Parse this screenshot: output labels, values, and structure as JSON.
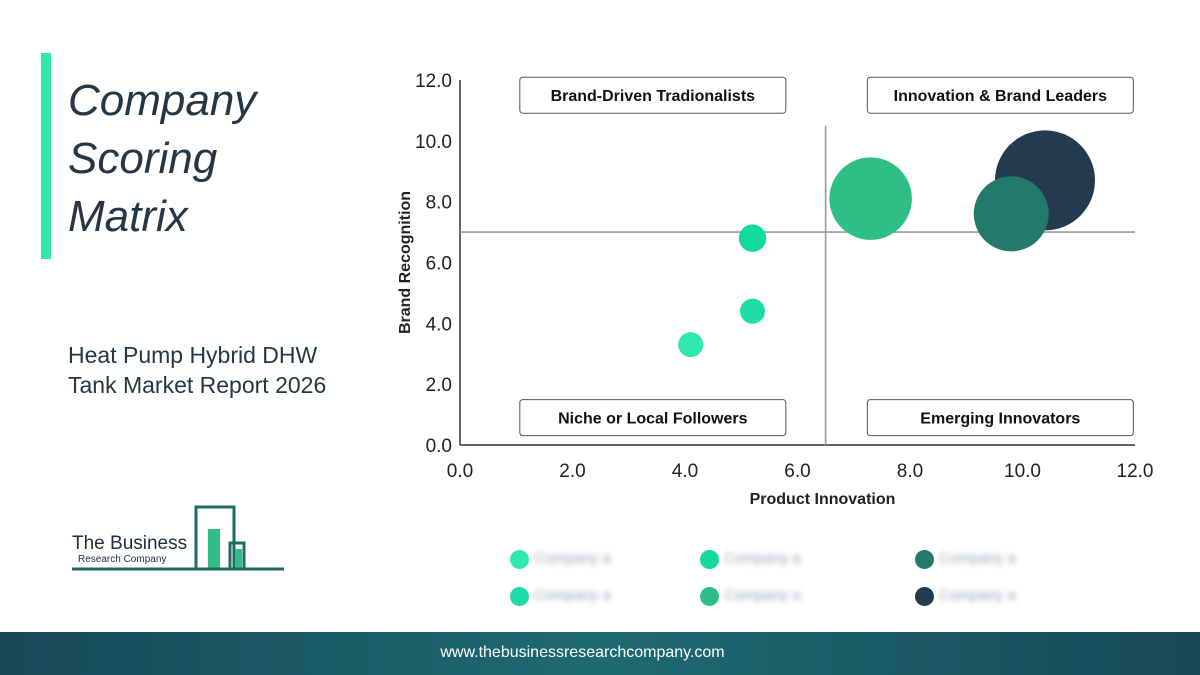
{
  "title": {
    "lines": [
      "Company",
      "Scoring",
      "Matrix"
    ]
  },
  "subtitle": {
    "lines": [
      "Heat Pump Hybrid DHW",
      "Tank Market Report 2026"
    ]
  },
  "logo": {
    "line1": "The Business",
    "line2": "Research Company"
  },
  "footer": {
    "url": "www.thebusinessresearchcompany.com"
  },
  "colors": {
    "accent": "#2ee8b0",
    "dark": "#243a4e",
    "footer": "#1e6a73"
  },
  "chart_data": {
    "type": "scatter",
    "xlabel": "Product Innovation",
    "ylabel": "Brand Recognition",
    "xlim": [
      0,
      12
    ],
    "ylim": [
      0,
      12
    ],
    "x_ticks": [
      "0.0",
      "2.0",
      "4.0",
      "6.0",
      "8.0",
      "10.0",
      "12.0"
    ],
    "y_ticks": [
      "0.0",
      "2.0",
      "4.0",
      "6.0",
      "8.0",
      "10.0",
      "12.0"
    ],
    "divider_x": 6.5,
    "divider_y": 7.0,
    "quadrants": [
      {
        "label": "Brand-Driven Tradionalists",
        "position": "top-left"
      },
      {
        "label": "Innovation & Brand Leaders",
        "position": "top-right"
      },
      {
        "label": "Niche or Local Followers",
        "position": "bottom-left"
      },
      {
        "label": "Emerging Innovators",
        "position": "bottom-right"
      }
    ],
    "points": [
      {
        "x": 4.1,
        "y": 3.3,
        "size": 1.0,
        "color": "#2ee8b0"
      },
      {
        "x": 5.2,
        "y": 4.4,
        "size": 1.0,
        "color": "#1fdba6"
      },
      {
        "x": 5.2,
        "y": 6.8,
        "size": 1.1,
        "color": "#12d99e"
      },
      {
        "x": 7.3,
        "y": 8.1,
        "size": 3.3,
        "color": "#2fbf86"
      },
      {
        "x": 9.8,
        "y": 7.6,
        "size": 3.0,
        "color": "#237a6b"
      },
      {
        "x": 10.4,
        "y": 8.7,
        "size": 4.0,
        "color": "#243a4e"
      }
    ],
    "legend": [
      {
        "label": "Company a",
        "color": "#2ee8b0"
      },
      {
        "label": "Company a",
        "color": "#12d99e"
      },
      {
        "label": "Company a",
        "color": "#237a6b"
      },
      {
        "label": "Company a",
        "color": "#1fdba6"
      },
      {
        "label": "Company a",
        "color": "#2fbf86"
      },
      {
        "label": "Company a",
        "color": "#243a4e"
      }
    ]
  }
}
